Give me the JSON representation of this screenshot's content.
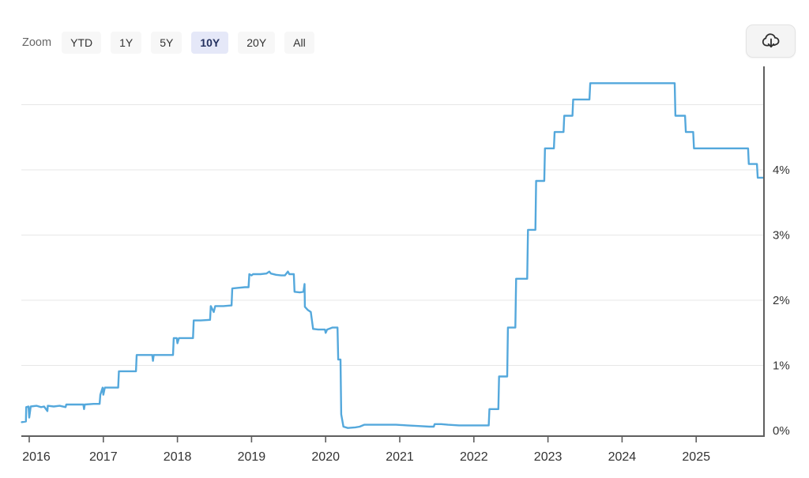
{
  "toolbar": {
    "zoom_label": "Zoom",
    "buttons": [
      {
        "label": "YTD",
        "active": false
      },
      {
        "label": "1Y",
        "active": false
      },
      {
        "label": "5Y",
        "active": false
      },
      {
        "label": "10Y",
        "active": true
      },
      {
        "label": "20Y",
        "active": false
      },
      {
        "label": "All",
        "active": false
      }
    ],
    "download_icon": "cloud-download-icon"
  },
  "colors": {
    "line": "#54a8dc",
    "gridline": "#e7e7e7",
    "axis": "#5f5f5f",
    "label": "#333333",
    "button_bg": "#f7f7f7",
    "active_button_bg": "#e5e8f8",
    "active_button_text": "#24315f"
  },
  "chart_data": {
    "type": "line",
    "xlabel": "",
    "ylabel": "",
    "grid": "horizontal-only",
    "legend": "none",
    "x_range": [
      2015.9,
      2025.92
    ],
    "y_range": [
      0,
      5.6
    ],
    "x_ticks": [
      "2016",
      "2017",
      "2018",
      "2019",
      "2020",
      "2021",
      "2022",
      "2023",
      "2024",
      "2025"
    ],
    "x_tick_years": [
      2016,
      2017,
      2018,
      2019,
      2020,
      2021,
      2022,
      2023,
      2024,
      2025
    ],
    "y_ticks": [
      {
        "value": 0,
        "label": "0%"
      },
      {
        "value": 1,
        "label": "1%"
      },
      {
        "value": 2,
        "label": "2%"
      },
      {
        "value": 3,
        "label": "3%"
      },
      {
        "value": 4,
        "label": "4%"
      }
    ],
    "y_gridlines": [
      1,
      2,
      3,
      4,
      5
    ],
    "series": [
      {
        "color": "#54a8dc",
        "points": [
          [
            2015.9,
            0.13
          ],
          [
            2015.955,
            0.14
          ],
          [
            2015.96,
            0.36
          ],
          [
            2015.99,
            0.37
          ],
          [
            2016.0,
            0.2
          ],
          [
            2016.02,
            0.37
          ],
          [
            2016.1,
            0.38
          ],
          [
            2016.16,
            0.36
          ],
          [
            2016.2,
            0.37
          ],
          [
            2016.245,
            0.3
          ],
          [
            2016.25,
            0.38
          ],
          [
            2016.33,
            0.37
          ],
          [
            2016.41,
            0.38
          ],
          [
            2016.49,
            0.36
          ],
          [
            2016.5,
            0.4
          ],
          [
            2016.58,
            0.4
          ],
          [
            2016.73,
            0.4
          ],
          [
            2016.74,
            0.33
          ],
          [
            2016.75,
            0.4
          ],
          [
            2016.87,
            0.41
          ],
          [
            2016.95,
            0.41
          ],
          [
            2016.96,
            0.55
          ],
          [
            2016.99,
            0.66
          ],
          [
            2017.0,
            0.55
          ],
          [
            2017.02,
            0.66
          ],
          [
            2017.12,
            0.66
          ],
          [
            2017.2,
            0.66
          ],
          [
            2017.21,
            0.91
          ],
          [
            2017.3,
            0.91
          ],
          [
            2017.44,
            0.91
          ],
          [
            2017.45,
            1.16
          ],
          [
            2017.55,
            1.16
          ],
          [
            2017.66,
            1.16
          ],
          [
            2017.67,
            1.07
          ],
          [
            2017.68,
            1.16
          ],
          [
            2017.83,
            1.16
          ],
          [
            2017.94,
            1.16
          ],
          [
            2017.95,
            1.42
          ],
          [
            2017.99,
            1.42
          ],
          [
            2018.0,
            1.34
          ],
          [
            2018.02,
            1.42
          ],
          [
            2018.12,
            1.42
          ],
          [
            2018.21,
            1.42
          ],
          [
            2018.22,
            1.69
          ],
          [
            2018.31,
            1.69
          ],
          [
            2018.44,
            1.7
          ],
          [
            2018.45,
            1.91
          ],
          [
            2018.49,
            1.82
          ],
          [
            2018.51,
            1.91
          ],
          [
            2018.62,
            1.91
          ],
          [
            2018.73,
            1.92
          ],
          [
            2018.74,
            2.18
          ],
          [
            2018.82,
            2.19
          ],
          [
            2018.91,
            2.2
          ],
          [
            2018.96,
            2.2
          ],
          [
            2018.97,
            2.4
          ],
          [
            2019.0,
            2.38
          ],
          [
            2019.02,
            2.4
          ],
          [
            2019.12,
            2.4
          ],
          [
            2019.2,
            2.41
          ],
          [
            2019.24,
            2.44
          ],
          [
            2019.26,
            2.41
          ],
          [
            2019.33,
            2.39
          ],
          [
            2019.4,
            2.38
          ],
          [
            2019.45,
            2.38
          ],
          [
            2019.49,
            2.44
          ],
          [
            2019.51,
            2.4
          ],
          [
            2019.57,
            2.4
          ],
          [
            2019.58,
            2.13
          ],
          [
            2019.65,
            2.12
          ],
          [
            2019.7,
            2.13
          ],
          [
            2019.715,
            2.25
          ],
          [
            2019.72,
            1.9
          ],
          [
            2019.76,
            1.85
          ],
          [
            2019.8,
            1.82
          ],
          [
            2019.83,
            1.56
          ],
          [
            2019.9,
            1.55
          ],
          [
            2019.99,
            1.55
          ],
          [
            2020.0,
            1.5
          ],
          [
            2020.02,
            1.55
          ],
          [
            2020.09,
            1.58
          ],
          [
            2020.16,
            1.58
          ],
          [
            2020.17,
            1.09
          ],
          [
            2020.2,
            1.09
          ],
          [
            2020.21,
            0.25
          ],
          [
            2020.24,
            0.06
          ],
          [
            2020.3,
            0.04
          ],
          [
            2020.4,
            0.05
          ],
          [
            2020.46,
            0.06
          ],
          [
            2020.52,
            0.09
          ],
          [
            2020.65,
            0.09
          ],
          [
            2020.8,
            0.09
          ],
          [
            2020.95,
            0.09
          ],
          [
            2021.1,
            0.08
          ],
          [
            2021.25,
            0.07
          ],
          [
            2021.4,
            0.06
          ],
          [
            2021.46,
            0.06
          ],
          [
            2021.47,
            0.1
          ],
          [
            2021.56,
            0.1
          ],
          [
            2021.65,
            0.09
          ],
          [
            2021.8,
            0.08
          ],
          [
            2021.95,
            0.08
          ],
          [
            2022.1,
            0.08
          ],
          [
            2022.2,
            0.08
          ],
          [
            2022.21,
            0.33
          ],
          [
            2022.33,
            0.33
          ],
          [
            2022.34,
            0.83
          ],
          [
            2022.45,
            0.83
          ],
          [
            2022.46,
            1.58
          ],
          [
            2022.56,
            1.58
          ],
          [
            2022.57,
            2.33
          ],
          [
            2022.72,
            2.33
          ],
          [
            2022.73,
            3.08
          ],
          [
            2022.83,
            3.08
          ],
          [
            2022.84,
            3.83
          ],
          [
            2022.95,
            3.83
          ],
          [
            2022.96,
            4.33
          ],
          [
            2023.08,
            4.33
          ],
          [
            2023.09,
            4.58
          ],
          [
            2023.21,
            4.58
          ],
          [
            2023.22,
            4.83
          ],
          [
            2023.33,
            4.83
          ],
          [
            2023.34,
            5.08
          ],
          [
            2023.56,
            5.08
          ],
          [
            2023.57,
            5.33
          ],
          [
            2023.8,
            5.33
          ],
          [
            2024.0,
            5.33
          ],
          [
            2024.25,
            5.33
          ],
          [
            2024.5,
            5.33
          ],
          [
            2024.71,
            5.33
          ],
          [
            2024.72,
            4.83
          ],
          [
            2024.85,
            4.83
          ],
          [
            2024.86,
            4.58
          ],
          [
            2024.96,
            4.58
          ],
          [
            2024.97,
            4.33
          ],
          [
            2025.15,
            4.33
          ],
          [
            2025.35,
            4.33
          ],
          [
            2025.55,
            4.33
          ],
          [
            2025.7,
            4.33
          ],
          [
            2025.71,
            4.09
          ],
          [
            2025.82,
            4.09
          ],
          [
            2025.83,
            3.88
          ],
          [
            2025.91,
            3.88
          ]
        ]
      }
    ]
  }
}
